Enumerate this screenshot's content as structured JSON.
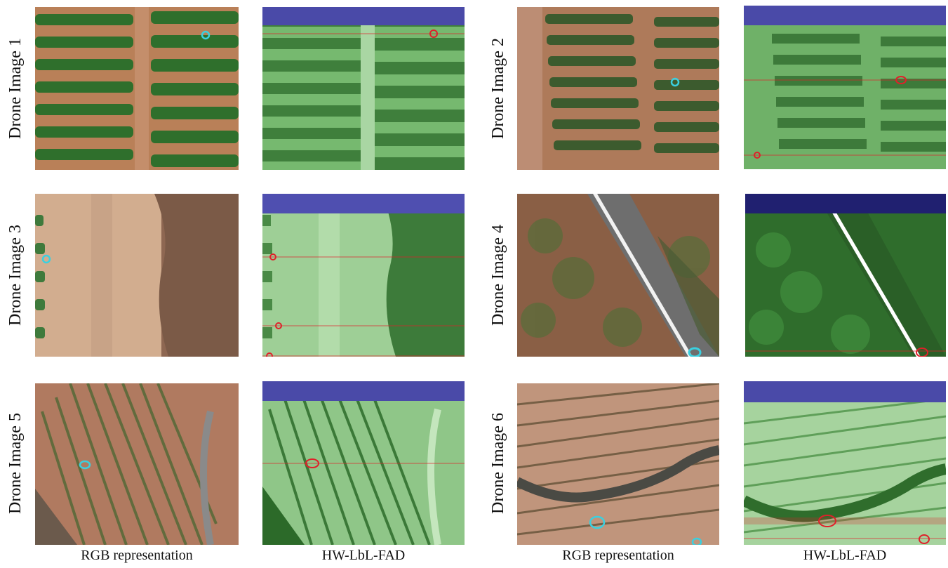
{
  "figure": {
    "row_labels": [
      "Drone Image 1",
      "Drone Image 2",
      "Drone Image 3",
      "Drone Image 4",
      "Drone Image 5",
      "Drone Image 6"
    ],
    "column_labels": {
      "rgb": "RGB representation",
      "detection": "HW-LbL-FAD"
    }
  },
  "colors": {
    "soil": "#b57a57",
    "vegetation": "#2f6e2f",
    "detection_overlay_green": "#4caf50",
    "detection_overlay_blue": "#3c3cae",
    "rgb_marker": "#3ad0e0",
    "detection_marker": "#e0202a"
  }
}
